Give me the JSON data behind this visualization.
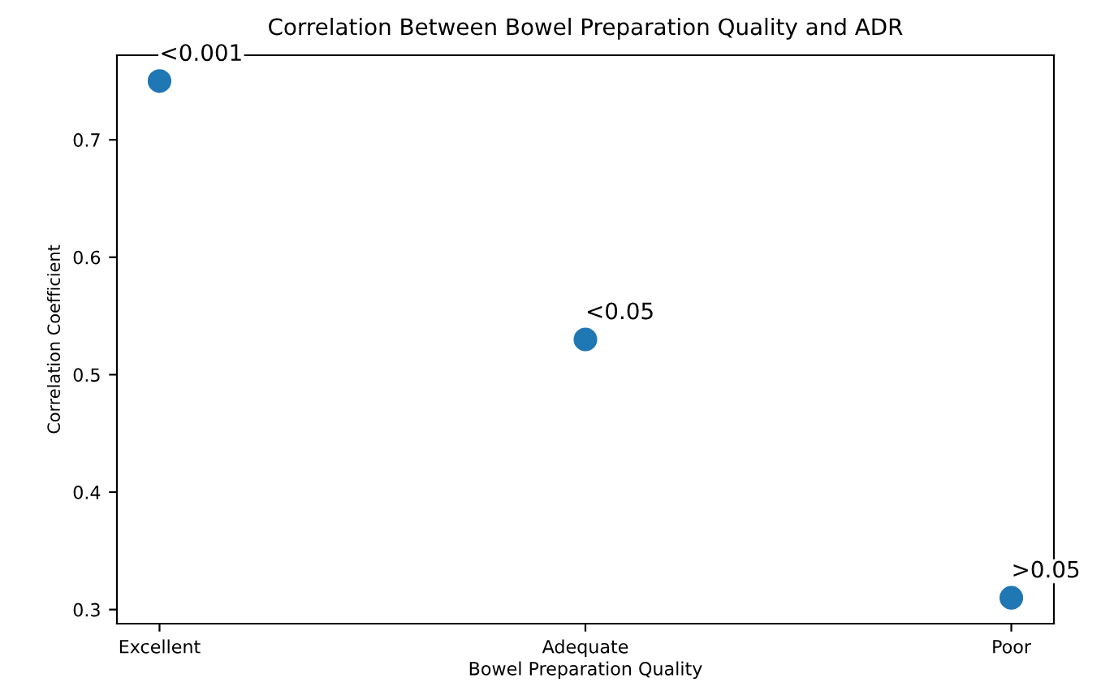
{
  "chart_data": {
    "type": "scatter",
    "title": "Correlation Between Bowel Preparation Quality and ADR",
    "xlabel": "Bowel Preparation Quality",
    "ylabel": "Correlation Coefficient",
    "categories": [
      "Excellent",
      "Adequate",
      "Poor"
    ],
    "series": [
      {
        "color": "#1f77b4",
        "values": [
          0.75,
          0.53,
          0.31
        ]
      }
    ],
    "ylim": [
      0.288,
      0.772
    ],
    "yticks": [
      0.3,
      0.4,
      0.5,
      0.6,
      0.7
    ],
    "marker": "circle",
    "annotations": [
      {
        "text": "<0.001",
        "x": "Excellent",
        "y": 0.75
      },
      {
        "text": "<0.05",
        "x": "Adequate",
        "y": 0.53
      },
      {
        "text": ">0.05",
        "x": "Poor",
        "y": 0.31
      }
    ]
  }
}
